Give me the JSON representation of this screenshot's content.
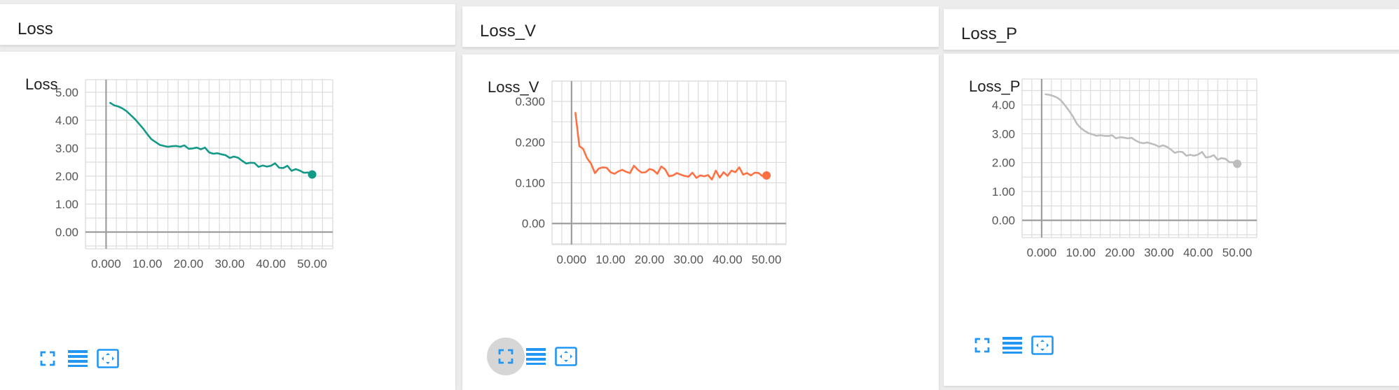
{
  "colors": {
    "teal": "#139988",
    "orange": "#ff7043",
    "gray": "#bdbdbd",
    "icon_blue": "#2196f3",
    "grid": "#dcdcdc",
    "axis": "#9e9e9e",
    "tick_text": "#555555"
  },
  "panels": [
    {
      "header_title": "Loss",
      "card_title": "Loss",
      "color_key": "teal",
      "fit_active": false
    },
    {
      "header_title": "Loss_V",
      "card_title": "Loss_V",
      "color_key": "orange",
      "fit_active": true
    },
    {
      "header_title": "Loss_P",
      "card_title": "Loss_P",
      "color_key": "gray",
      "fit_active": false
    }
  ],
  "toolbar_icons": [
    "fullscreen-icon",
    "list-icon",
    "fit-domain-icon"
  ],
  "chart_data": [
    {
      "type": "line",
      "title": "Loss",
      "xlabel": "",
      "ylabel": "",
      "xlim": [
        -5,
        55
      ],
      "ylim": [
        -0.6,
        5.45
      ],
      "x_ticks": [
        "0.000",
        "10.00",
        "20.00",
        "30.00",
        "40.00",
        "50.00"
      ],
      "y_ticks": [
        "0.00",
        "1.00",
        "2.00",
        "3.00",
        "4.00",
        "5.00"
      ],
      "grid": true,
      "series": [
        {
          "x": [
            1,
            2,
            3,
            4,
            5,
            6,
            7,
            8,
            9,
            10,
            11,
            12,
            13,
            14,
            15,
            16,
            17,
            18,
            19,
            20,
            21,
            22,
            23,
            24,
            25,
            26,
            27,
            28,
            29,
            30,
            31,
            32,
            33,
            34,
            35,
            36,
            37,
            38,
            39,
            40,
            41,
            42,
            43,
            44,
            45,
            46,
            47,
            48,
            49,
            50
          ],
          "values": [
            4.62,
            4.53,
            4.49,
            4.42,
            4.32,
            4.18,
            4.04,
            3.87,
            3.7,
            3.5,
            3.32,
            3.22,
            3.12,
            3.08,
            3.05,
            3.07,
            3.08,
            3.05,
            3.1,
            2.98,
            2.99,
            3.02,
            2.96,
            3.02,
            2.85,
            2.8,
            2.82,
            2.78,
            2.75,
            2.65,
            2.7,
            2.66,
            2.55,
            2.45,
            2.48,
            2.47,
            2.33,
            2.38,
            2.34,
            2.37,
            2.46,
            2.3,
            2.29,
            2.37,
            2.19,
            2.25,
            2.2,
            2.12,
            2.13,
            2.06
          ]
        }
      ]
    },
    {
      "type": "line",
      "title": "Loss_V",
      "xlabel": "",
      "ylabel": "",
      "xlim": [
        -5,
        55
      ],
      "ylim": [
        -0.052,
        0.35
      ],
      "x_ticks": [
        "0.000",
        "10.00",
        "20.00",
        "30.00",
        "40.00",
        "50.00"
      ],
      "y_ticks": [
        "0.00",
        "0.100",
        "0.200",
        "0.300"
      ],
      "grid": true,
      "series": [
        {
          "x": [
            1,
            2,
            3,
            4,
            5,
            6,
            7,
            8,
            9,
            10,
            11,
            12,
            13,
            14,
            15,
            16,
            17,
            18,
            19,
            20,
            21,
            22,
            23,
            24,
            25,
            26,
            27,
            28,
            29,
            30,
            31,
            32,
            33,
            34,
            35,
            36,
            37,
            38,
            39,
            40,
            41,
            42,
            43,
            44,
            45,
            46,
            47,
            48,
            49,
            50
          ],
          "values": [
            0.272,
            0.19,
            0.183,
            0.16,
            0.147,
            0.124,
            0.135,
            0.138,
            0.137,
            0.126,
            0.122,
            0.128,
            0.132,
            0.127,
            0.124,
            0.142,
            0.132,
            0.125,
            0.126,
            0.134,
            0.131,
            0.122,
            0.14,
            0.133,
            0.116,
            0.118,
            0.124,
            0.12,
            0.117,
            0.115,
            0.125,
            0.112,
            0.118,
            0.116,
            0.119,
            0.108,
            0.13,
            0.113,
            0.126,
            0.117,
            0.13,
            0.126,
            0.138,
            0.12,
            0.124,
            0.118,
            0.125,
            0.124,
            0.116,
            0.118
          ]
        }
      ]
    },
    {
      "type": "line",
      "title": "Loss_P",
      "xlabel": "",
      "ylabel": "",
      "xlim": [
        -5,
        55
      ],
      "ylim": [
        -0.6,
        4.9
      ],
      "x_ticks": [
        "0.000",
        "10.00",
        "20.00",
        "30.00",
        "40.00",
        "50.00"
      ],
      "y_ticks": [
        "0.00",
        "1.00",
        "2.00",
        "3.00",
        "4.00"
      ],
      "grid": true,
      "series": [
        {
          "x": [
            1,
            2,
            3,
            4,
            5,
            6,
            7,
            8,
            9,
            10,
            11,
            12,
            13,
            14,
            15,
            16,
            17,
            18,
            19,
            20,
            21,
            22,
            23,
            24,
            25,
            26,
            27,
            28,
            29,
            30,
            31,
            32,
            33,
            34,
            35,
            36,
            37,
            38,
            39,
            40,
            41,
            42,
            43,
            44,
            45,
            46,
            47,
            48,
            49,
            50
          ],
          "values": [
            4.37,
            4.35,
            4.31,
            4.25,
            4.15,
            3.98,
            3.8,
            3.6,
            3.35,
            3.2,
            3.1,
            3.02,
            2.98,
            2.93,
            2.95,
            2.93,
            2.92,
            2.95,
            2.84,
            2.88,
            2.87,
            2.84,
            2.86,
            2.77,
            2.7,
            2.67,
            2.7,
            2.66,
            2.62,
            2.55,
            2.6,
            2.55,
            2.46,
            2.34,
            2.38,
            2.37,
            2.24,
            2.27,
            2.24,
            2.28,
            2.37,
            2.18,
            2.2,
            2.26,
            2.1,
            2.16,
            2.13,
            2.02,
            2.01,
            1.96
          ]
        }
      ]
    }
  ]
}
